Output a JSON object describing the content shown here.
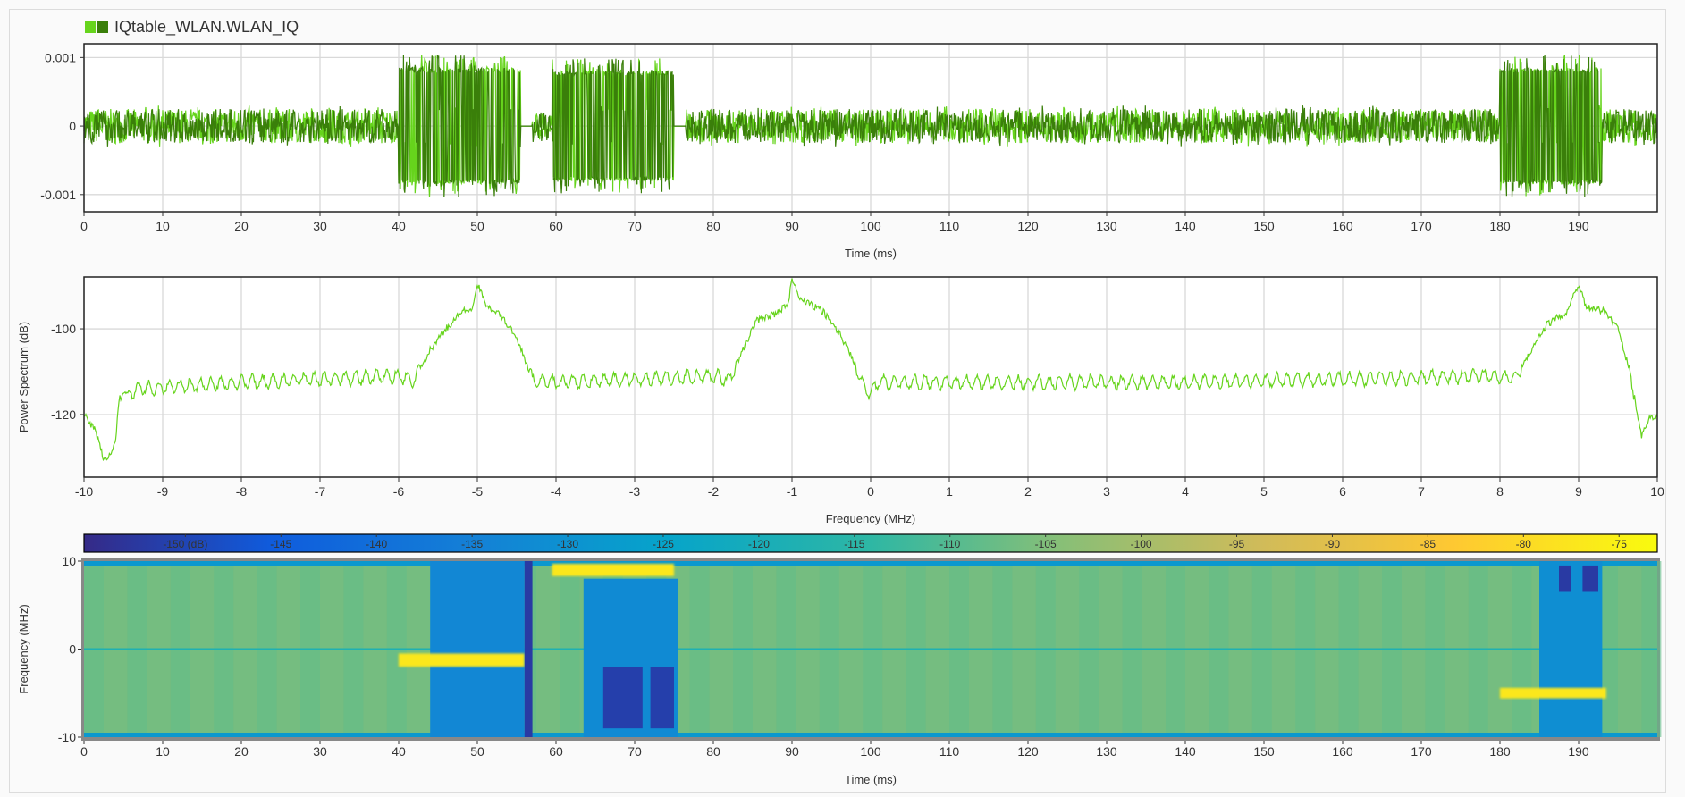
{
  "legend": {
    "label": "IQtable_WLAN.WLAN_IQ",
    "swatch_colors": [
      "#66d41c",
      "#3a7f0a"
    ]
  },
  "chart_data": [
    {
      "type": "line",
      "xlabel": "Time (ms)",
      "ylabel": "",
      "xlim": [
        0,
        200
      ],
      "ylim": [
        -0.00125,
        0.0012
      ],
      "xticks": [
        0,
        10,
        20,
        30,
        40,
        50,
        60,
        70,
        80,
        90,
        100,
        110,
        120,
        130,
        140,
        150,
        160,
        170,
        180,
        190
      ],
      "yticks": [
        -0.001,
        0,
        0.001
      ],
      "ytick_labels": [
        "-0.001",
        "0",
        "0.001"
      ],
      "grid": true,
      "series_colors": [
        "#66d41c",
        "#3a7f0a"
      ],
      "segments": [
        {
          "start": 0,
          "end": 40,
          "amplitude": 0.00025
        },
        {
          "start": 40,
          "end": 55.5,
          "amplitude": 0.001
        },
        {
          "start": 55.5,
          "end": 57,
          "amplitude": 0
        },
        {
          "start": 57,
          "end": 59.5,
          "amplitude": 0.0002
        },
        {
          "start": 59.5,
          "end": 75,
          "amplitude": 0.00095
        },
        {
          "start": 75,
          "end": 76.5,
          "amplitude": 0
        },
        {
          "start": 76.5,
          "end": 180,
          "amplitude": 0.00025
        },
        {
          "start": 180,
          "end": 193,
          "amplitude": 0.001
        },
        {
          "start": 193,
          "end": 200,
          "amplitude": 0.00025
        }
      ]
    },
    {
      "type": "line",
      "xlabel": "Frequency (MHz)",
      "ylabel": "Power Spectrum (dB)",
      "xlim": [
        -10,
        10
      ],
      "ylim": [
        -134.6,
        -87.9
      ],
      "xticks": [
        -10,
        -9,
        -8,
        -7,
        -6,
        -5,
        -4,
        -3,
        -2,
        -1,
        0,
        1,
        2,
        3,
        4,
        5,
        6,
        7,
        8,
        9,
        10
      ],
      "yticks": [
        -120,
        -100
      ],
      "grid": true,
      "color": "#66d41c",
      "points": [
        [
          -10,
          -120
        ],
        [
          -9.85,
          -124
        ],
        [
          -9.75,
          -130.5
        ],
        [
          -9.65,
          -129
        ],
        [
          -9.6,
          -126
        ],
        [
          -9.55,
          -116
        ],
        [
          -9.3,
          -114
        ],
        [
          -8,
          -112.5
        ],
        [
          -6,
          -111
        ],
        [
          -5.8,
          -112
        ],
        [
          -5.6,
          -105
        ],
        [
          -5.4,
          -100
        ],
        [
          -5.2,
          -96
        ],
        [
          -5.05,
          -95
        ],
        [
          -5,
          -89.5
        ],
        [
          -4.9,
          -94
        ],
        [
          -4.7,
          -97
        ],
        [
          -4.5,
          -102
        ],
        [
          -4.3,
          -112
        ],
        [
          -4,
          -112.5
        ],
        [
          -2,
          -111
        ],
        [
          -1.8,
          -112
        ],
        [
          -1.6,
          -104
        ],
        [
          -1.45,
          -98
        ],
        [
          -1.2,
          -96.5
        ],
        [
          -1.05,
          -94
        ],
        [
          -1,
          -88.5
        ],
        [
          -0.9,
          -93
        ],
        [
          -0.6,
          -96
        ],
        [
          -0.4,
          -101
        ],
        [
          -0.2,
          -108
        ],
        [
          -0.1,
          -113
        ],
        [
          0,
          -115
        ],
        [
          0.1,
          -112.5
        ],
        [
          4,
          -112.5
        ],
        [
          8,
          -111
        ],
        [
          8.2,
          -111.5
        ],
        [
          8.4,
          -105
        ],
        [
          8.6,
          -99
        ],
        [
          8.85,
          -96
        ],
        [
          9,
          -89.5
        ],
        [
          9.1,
          -95
        ],
        [
          9.35,
          -96
        ],
        [
          9.5,
          -100
        ],
        [
          9.65,
          -110
        ],
        [
          9.8,
          -125
        ],
        [
          9.9,
          -121
        ],
        [
          10,
          -120.5
        ]
      ]
    },
    {
      "type": "heatmap",
      "xlabel": "Time (ms)",
      "ylabel": "Frequency (MHz)",
      "xlim": [
        0,
        200
      ],
      "ylim": [
        -10,
        10
      ],
      "xticks": [
        0,
        10,
        20,
        30,
        40,
        50,
        60,
        70,
        80,
        90,
        100,
        110,
        120,
        130,
        140,
        150,
        160,
        170,
        180,
        190
      ],
      "yticks": [
        -10,
        0,
        10
      ],
      "colorbar": {
        "range": [
          -155.3,
          -73
        ],
        "ticks": [
          -150,
          -145,
          -140,
          -135,
          -130,
          -125,
          -120,
          -115,
          -110,
          -105,
          -100,
          -95,
          -90,
          -85,
          -80,
          -75
        ],
        "tick_labels": [
          "-150 (dB)",
          "-145",
          "-140",
          "-135",
          "-130",
          "-125",
          "-120",
          "-115",
          "-110",
          "-105",
          "-100",
          "-95",
          "-90",
          "-85",
          "-80",
          "-75"
        ],
        "colormap": "parula"
      },
      "background_db": -106,
      "regions": [
        {
          "t": [
            44,
            56
          ],
          "f": [
            -10,
            10
          ],
          "db": -133
        },
        {
          "t": [
            40,
            56
          ],
          "f": [
            -2,
            -0.5
          ],
          "db": -77
        },
        {
          "t": [
            56,
            57
          ],
          "f": [
            -10,
            10
          ],
          "db": -152
        },
        {
          "t": [
            63.5,
            75.5
          ],
          "f": [
            -10,
            8
          ],
          "db": -132
        },
        {
          "t": [
            66,
            71
          ],
          "f": [
            -9,
            -2
          ],
          "db": -151
        },
        {
          "t": [
            72,
            75
          ],
          "f": [
            -9,
            -2
          ],
          "db": -151
        },
        {
          "t": [
            59.5,
            75
          ],
          "f": [
            8.3,
            9.7
          ],
          "db": -77
        },
        {
          "t": [
            185,
            193
          ],
          "f": [
            -10,
            10
          ],
          "db": -131
        },
        {
          "t": [
            187.5,
            189
          ],
          "f": [
            6.5,
            9.5
          ],
          "db": -152
        },
        {
          "t": [
            190.5,
            192.5
          ],
          "f": [
            6.5,
            9.5
          ],
          "db": -152
        },
        {
          "t": [
            180,
            193.5
          ],
          "f": [
            -5.6,
            -4.4
          ],
          "db": -77
        }
      ]
    }
  ]
}
